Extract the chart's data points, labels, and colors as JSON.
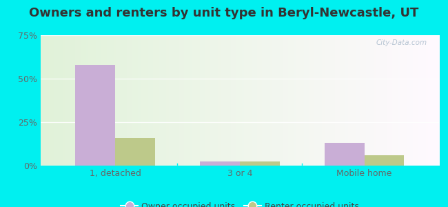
{
  "title": "Owners and renters by unit type in Beryl-Newcastle, UT",
  "categories": [
    "1, detached",
    "3 or 4",
    "Mobile home"
  ],
  "owner_values": [
    58.0,
    2.5,
    13.0
  ],
  "renter_values": [
    16.0,
    2.5,
    6.0
  ],
  "owner_color": "#c9aed6",
  "renter_color": "#bdc98a",
  "ylim": [
    0,
    75
  ],
  "yticks": [
    0,
    25,
    50,
    75
  ],
  "ytick_labels": [
    "0%",
    "25%",
    "50%",
    "75%"
  ],
  "bar_width": 0.32,
  "outer_bg": "#00f0f0",
  "plot_bg_left": "#d8edcc",
  "plot_bg_right": "#d8eef0",
  "legend_labels": [
    "Owner occupied units",
    "Renter occupied units"
  ],
  "watermark": "City-Data.com",
  "title_fontsize": 13,
  "axis_fontsize": 9,
  "legend_fontsize": 9,
  "tick_color": "#666666",
  "grid_color": "#e0e8e0"
}
